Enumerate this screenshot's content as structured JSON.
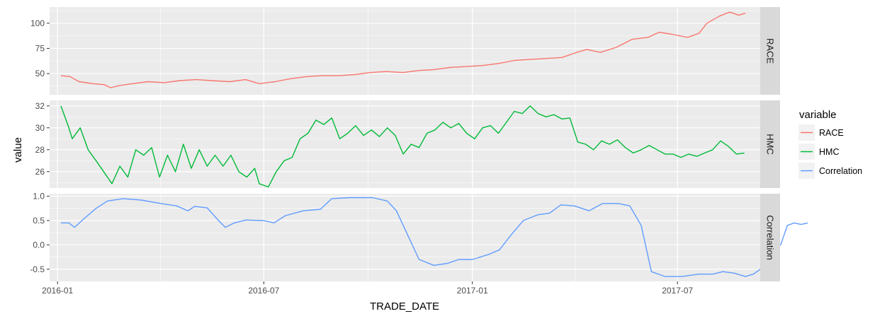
{
  "chart_data": {
    "type": "line",
    "layout": "faceted",
    "xlabel": "TRADE_DATE",
    "ylabel": "value",
    "x_ticks": [
      "2016-01",
      "2016-07",
      "2017-01",
      "2017-07"
    ],
    "x_range": [
      "2015-12-25",
      "2017-09-12"
    ],
    "legend": {
      "title": "variable",
      "entries": [
        "RACE",
        "HMC",
        "Correlation"
      ],
      "placement": "right"
    },
    "grid": true,
    "colors": {
      "RACE": "#F8766D",
      "HMC": "#00BA38",
      "Correlation": "#619CFF"
    },
    "facets": [
      {
        "label": "RACE",
        "ylim": [
          29,
          116
        ],
        "yticks": [
          50,
          75,
          100
        ],
        "series": {
          "name": "RACE",
          "color": "#F8766D",
          "points": [
            [
              "2016-01-04",
              48
            ],
            [
              "2016-01-12",
              47
            ],
            [
              "2016-01-20",
              42
            ],
            [
              "2016-02-01",
              40
            ],
            [
              "2016-02-11",
              39
            ],
            [
              "2016-02-17",
              36
            ],
            [
              "2016-02-24",
              38
            ],
            [
              "2016-03-07",
              40
            ],
            [
              "2016-03-21",
              42
            ],
            [
              "2016-04-04",
              41
            ],
            [
              "2016-04-18",
              43
            ],
            [
              "2016-05-02",
              44
            ],
            [
              "2016-05-16",
              43
            ],
            [
              "2016-06-01",
              42
            ],
            [
              "2016-06-15",
              44
            ],
            [
              "2016-06-27",
              40
            ],
            [
              "2016-07-11",
              42
            ],
            [
              "2016-07-25",
              45
            ],
            [
              "2016-08-08",
              47
            ],
            [
              "2016-08-22",
              48
            ],
            [
              "2016-09-06",
              48
            ],
            [
              "2016-09-19",
              49
            ],
            [
              "2016-10-03",
              51
            ],
            [
              "2016-10-17",
              52
            ],
            [
              "2016-11-01",
              51
            ],
            [
              "2016-11-14",
              53
            ],
            [
              "2016-11-28",
              54
            ],
            [
              "2016-12-12",
              56
            ],
            [
              "2016-12-27",
              57
            ],
            [
              "2017-01-10",
              58
            ],
            [
              "2017-01-24",
              60
            ],
            [
              "2017-02-07",
              63
            ],
            [
              "2017-02-21",
              64
            ],
            [
              "2017-03-07",
              65
            ],
            [
              "2017-03-21",
              66
            ],
            [
              "2017-04-03",
              71
            ],
            [
              "2017-04-12",
              74
            ],
            [
              "2017-04-24",
              71
            ],
            [
              "2017-05-08",
              76
            ],
            [
              "2017-05-22",
              84
            ],
            [
              "2017-06-05",
              86
            ],
            [
              "2017-06-15",
              91
            ],
            [
              "2017-06-26",
              89
            ],
            [
              "2017-07-10",
              86
            ],
            [
              "2017-07-20",
              90
            ],
            [
              "2017-07-27",
              100
            ],
            [
              "2017-08-07",
              107
            ],
            [
              "2017-08-16",
              111
            ],
            [
              "2017-08-24",
              108
            ],
            [
              "2017-08-30",
              110
            ]
          ]
        }
      },
      {
        "label": "HMC",
        "ylim": [
          24.5,
          32.5
        ],
        "yticks": [
          26,
          28,
          30,
          32
        ],
        "series": {
          "name": "HMC",
          "color": "#00BA38",
          "points": [
            [
              "2016-01-04",
              32.0
            ],
            [
              "2016-01-11",
              30.0
            ],
            [
              "2016-01-14",
              29.0
            ],
            [
              "2016-01-21",
              30.0
            ],
            [
              "2016-01-28",
              28.0
            ],
            [
              "2016-02-04",
              27.0
            ],
            [
              "2016-02-12",
              25.8
            ],
            [
              "2016-02-18",
              24.9
            ],
            [
              "2016-02-25",
              26.5
            ],
            [
              "2016-03-03",
              25.5
            ],
            [
              "2016-03-10",
              28.0
            ],
            [
              "2016-03-17",
              27.5
            ],
            [
              "2016-03-24",
              28.2
            ],
            [
              "2016-03-31",
              25.5
            ],
            [
              "2016-04-07",
              27.5
            ],
            [
              "2016-04-14",
              26.0
            ],
            [
              "2016-04-21",
              28.5
            ],
            [
              "2016-04-28",
              26.3
            ],
            [
              "2016-05-05",
              28.0
            ],
            [
              "2016-05-12",
              26.5
            ],
            [
              "2016-05-19",
              27.5
            ],
            [
              "2016-05-26",
              26.5
            ],
            [
              "2016-06-02",
              27.5
            ],
            [
              "2016-06-09",
              26.0
            ],
            [
              "2016-06-16",
              25.5
            ],
            [
              "2016-06-23",
              26.3
            ],
            [
              "2016-06-27",
              24.9
            ],
            [
              "2016-07-05",
              24.6
            ],
            [
              "2016-07-12",
              26.0
            ],
            [
              "2016-07-19",
              27.0
            ],
            [
              "2016-07-26",
              27.3
            ],
            [
              "2016-08-02",
              29.0
            ],
            [
              "2016-08-09",
              29.5
            ],
            [
              "2016-08-16",
              30.7
            ],
            [
              "2016-08-23",
              30.3
            ],
            [
              "2016-08-30",
              30.9
            ],
            [
              "2016-09-06",
              29.0
            ],
            [
              "2016-09-13",
              29.5
            ],
            [
              "2016-09-20",
              30.2
            ],
            [
              "2016-09-27",
              29.3
            ],
            [
              "2016-10-04",
              29.8
            ],
            [
              "2016-10-11",
              29.2
            ],
            [
              "2016-10-18",
              30.0
            ],
            [
              "2016-10-25",
              29.3
            ],
            [
              "2016-11-01",
              27.6
            ],
            [
              "2016-11-08",
              28.5
            ],
            [
              "2016-11-15",
              28.2
            ],
            [
              "2016-11-22",
              29.5
            ],
            [
              "2016-11-29",
              29.8
            ],
            [
              "2016-12-06",
              30.5
            ],
            [
              "2016-12-13",
              30.0
            ],
            [
              "2016-12-20",
              30.4
            ],
            [
              "2016-12-27",
              29.5
            ],
            [
              "2017-01-03",
              29.0
            ],
            [
              "2017-01-10",
              30.0
            ],
            [
              "2017-01-17",
              30.2
            ],
            [
              "2017-01-24",
              29.5
            ],
            [
              "2017-01-31",
              30.5
            ],
            [
              "2017-02-07",
              31.5
            ],
            [
              "2017-02-14",
              31.3
            ],
            [
              "2017-02-21",
              32.0
            ],
            [
              "2017-02-28",
              31.3
            ],
            [
              "2017-03-07",
              31.0
            ],
            [
              "2017-03-14",
              31.2
            ],
            [
              "2017-03-21",
              30.8
            ],
            [
              "2017-03-28",
              30.9
            ],
            [
              "2017-04-04",
              28.7
            ],
            [
              "2017-04-11",
              28.5
            ],
            [
              "2017-04-18",
              28.0
            ],
            [
              "2017-04-25",
              28.8
            ],
            [
              "2017-05-02",
              28.5
            ],
            [
              "2017-05-09",
              28.9
            ],
            [
              "2017-05-16",
              28.2
            ],
            [
              "2017-05-23",
              27.7
            ],
            [
              "2017-05-30",
              28.0
            ],
            [
              "2017-06-06",
              28.4
            ],
            [
              "2017-06-13",
              28.0
            ],
            [
              "2017-06-20",
              27.6
            ],
            [
              "2017-06-27",
              27.6
            ],
            [
              "2017-07-04",
              27.3
            ],
            [
              "2017-07-11",
              27.6
            ],
            [
              "2017-07-18",
              27.4
            ],
            [
              "2017-07-25",
              27.7
            ],
            [
              "2017-08-01",
              28.0
            ],
            [
              "2017-08-08",
              28.8
            ],
            [
              "2017-08-15",
              28.3
            ],
            [
              "2017-08-22",
              27.6
            ],
            [
              "2017-08-29",
              27.7
            ]
          ]
        }
      },
      {
        "label": "Correlation",
        "ylim": [
          -0.75,
          1.05
        ],
        "yticks": [
          -0.5,
          0.0,
          0.5,
          1.0
        ],
        "ytick_labels": [
          "-0.5",
          "0.0",
          "0.5",
          "1.0"
        ],
        "series": {
          "name": "Correlation",
          "color": "#619CFF",
          "points": [
            [
              "2016-01-04",
              0.45
            ],
            [
              "2016-01-11",
              0.45
            ],
            [
              "2016-01-16",
              0.36
            ],
            [
              "2016-01-25",
              0.55
            ],
            [
              "2016-02-04",
              0.75
            ],
            [
              "2016-02-14",
              0.9
            ],
            [
              "2016-02-28",
              0.95
            ],
            [
              "2016-03-15",
              0.92
            ],
            [
              "2016-04-01",
              0.85
            ],
            [
              "2016-04-15",
              0.8
            ],
            [
              "2016-04-25",
              0.7
            ],
            [
              "2016-05-01",
              0.79
            ],
            [
              "2016-05-12",
              0.76
            ],
            [
              "2016-05-22",
              0.5
            ],
            [
              "2016-05-28",
              0.36
            ],
            [
              "2016-06-05",
              0.45
            ],
            [
              "2016-06-15",
              0.51
            ],
            [
              "2016-07-01",
              0.5
            ],
            [
              "2016-07-10",
              0.45
            ],
            [
              "2016-07-20",
              0.6
            ],
            [
              "2016-08-05",
              0.7
            ],
            [
              "2016-08-20",
              0.73
            ],
            [
              "2016-08-30",
              0.95
            ],
            [
              "2016-09-15",
              0.97
            ],
            [
              "2016-10-05",
              0.97
            ],
            [
              "2016-10-18",
              0.9
            ],
            [
              "2016-10-26",
              0.7
            ],
            [
              "2016-11-05",
              0.2
            ],
            [
              "2016-11-15",
              -0.3
            ],
            [
              "2016-11-28",
              -0.42
            ],
            [
              "2016-12-10",
              -0.38
            ],
            [
              "2016-12-20",
              -0.3
            ],
            [
              "2017-01-01",
              -0.3
            ],
            [
              "2017-01-15",
              -0.2
            ],
            [
              "2017-01-25",
              -0.1
            ],
            [
              "2017-02-04",
              0.2
            ],
            [
              "2017-02-15",
              0.5
            ],
            [
              "2017-02-28",
              0.62
            ],
            [
              "2017-03-10",
              0.65
            ],
            [
              "2017-03-20",
              0.82
            ],
            [
              "2017-04-01",
              0.8
            ],
            [
              "2017-04-14",
              0.7
            ],
            [
              "2017-04-26",
              0.85
            ],
            [
              "2017-05-10",
              0.85
            ],
            [
              "2017-05-20",
              0.8
            ],
            [
              "2017-05-30",
              0.4
            ],
            [
              "2017-06-08",
              -0.55
            ],
            [
              "2017-06-20",
              -0.65
            ],
            [
              "2017-07-05",
              -0.65
            ],
            [
              "2017-07-20",
              -0.6
            ],
            [
              "2017-08-01",
              -0.6
            ],
            [
              "2017-08-10",
              -0.55
            ],
            [
              "2017-08-20",
              -0.58
            ],
            [
              "2017-08-30",
              -0.65
            ],
            [
              "2017-09-06",
              -0.6
            ],
            [
              "2017-09-15",
              -0.45
            ],
            [
              "2017-09-22",
              -0.1
            ],
            [
              "2017-09-30",
              0.0
            ],
            [
              "2017-10-06",
              0.4
            ],
            [
              "2017-10-12",
              0.45
            ],
            [
              "2017-10-18",
              0.42
            ],
            [
              "2017-10-24",
              0.45
            ]
          ]
        }
      }
    ]
  }
}
